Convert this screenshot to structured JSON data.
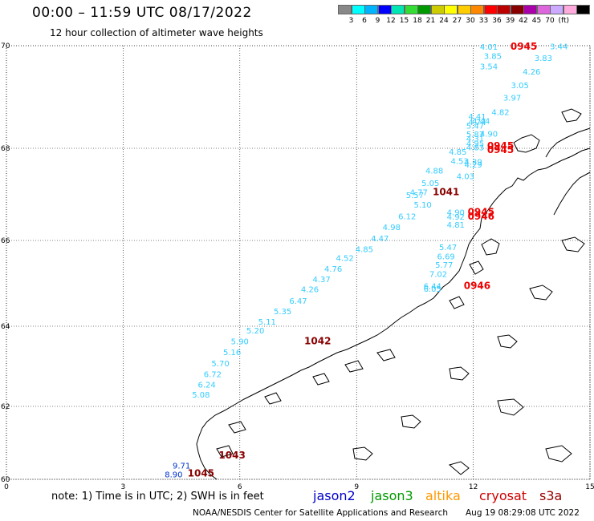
{
  "header": {
    "title": "00:00 – 11:59 UTC 08/17/2022",
    "subtitle": "12 hour collection of altimeter wave heights"
  },
  "colorbar": {
    "colors": [
      "#888888",
      "#00ffff",
      "#00b3ff",
      "#0000ff",
      "#00e6b3",
      "#33dd33",
      "#009900",
      "#cccc00",
      "#ffff00",
      "#ffcc00",
      "#ff8800",
      "#ff0000",
      "#bb0000",
      "#880000",
      "#aa00aa",
      "#dd66dd",
      "#ccaaff",
      "#ffaadd",
      "#000000"
    ],
    "labels": [
      "3",
      "6",
      "9",
      "12",
      "15",
      "18",
      "21",
      "24",
      "27",
      "30",
      "33",
      "36",
      "39",
      "42",
      "45",
      "70"
    ],
    "unit": "(ft)"
  },
  "axes": {
    "lat_labels": [
      {
        "lat": 70,
        "label": "70"
      },
      {
        "lat": 68,
        "label": "68"
      },
      {
        "lat": 66,
        "label": "66"
      },
      {
        "lat": 64,
        "label": "64"
      },
      {
        "lat": 62,
        "label": "62"
      },
      {
        "lat": 60,
        "label": "60"
      }
    ],
    "lon_labels": [
      {
        "lon": 0,
        "label": "0"
      },
      {
        "lon": 3,
        "label": "3"
      },
      {
        "lon": 6,
        "label": "6"
      },
      {
        "lon": 9,
        "label": "9"
      },
      {
        "lon": 12,
        "label": "12"
      },
      {
        "lon": 15,
        "label": "15"
      }
    ],
    "grid": true
  },
  "tracks": {
    "cyan": [
      {
        "lon": 12.4,
        "lat": 69.92,
        "v": "4.01"
      },
      {
        "lon": 14.2,
        "lat": 69.93,
        "v": "3.44"
      },
      {
        "lon": 12.5,
        "lat": 69.74,
        "v": "3.85"
      },
      {
        "lon": 13.8,
        "lat": 69.7,
        "v": "3.83"
      },
      {
        "lon": 12.4,
        "lat": 69.54,
        "v": "3.54"
      },
      {
        "lon": 13.5,
        "lat": 69.44,
        "v": "4.26"
      },
      {
        "lon": 13.2,
        "lat": 69.17,
        "v": "3.05"
      },
      {
        "lon": 13.0,
        "lat": 68.93,
        "v": "3.97"
      },
      {
        "lon": 12.7,
        "lat": 68.65,
        "v": "4.82"
      },
      {
        "lon": 12.1,
        "lat": 68.56,
        "v": "4.41"
      },
      {
        "lon": 12.2,
        "lat": 68.48,
        "v": "4.44"
      },
      {
        "lon": 12.1,
        "lat": 68.45,
        "v": "4.74"
      },
      {
        "lon": 12.05,
        "lat": 68.38,
        "v": "5.47"
      },
      {
        "lon": 12.4,
        "lat": 68.23,
        "v": "4.90"
      },
      {
        "lon": 12.05,
        "lat": 68.22,
        "v": "5.87"
      },
      {
        "lon": 12.05,
        "lat": 68.13,
        "v": "4.31"
      },
      {
        "lon": 12.05,
        "lat": 68.04,
        "v": "4.95"
      },
      {
        "lon": 12.05,
        "lat": 67.96,
        "v": "4.83"
      },
      {
        "lon": 11.6,
        "lat": 67.86,
        "v": "4.85"
      },
      {
        "lon": 11.65,
        "lat": 67.66,
        "v": "4.53"
      },
      {
        "lon": 12.0,
        "lat": 67.64,
        "v": "4.39"
      },
      {
        "lon": 12.0,
        "lat": 67.58,
        "v": "4.29"
      },
      {
        "lon": 11.0,
        "lat": 67.45,
        "v": "4.88"
      },
      {
        "lon": 11.8,
        "lat": 67.33,
        "v": "4.03"
      },
      {
        "lon": 10.9,
        "lat": 67.18,
        "v": "5.05"
      },
      {
        "lon": 10.6,
        "lat": 66.98,
        "v": "4.77"
      },
      {
        "lon": 10.5,
        "lat": 66.92,
        "v": "5.57"
      },
      {
        "lon": 10.7,
        "lat": 66.71,
        "v": "5.10"
      },
      {
        "lon": 11.55,
        "lat": 66.55,
        "v": "4.90"
      },
      {
        "lon": 11.55,
        "lat": 66.45,
        "v": "4.92"
      },
      {
        "lon": 10.3,
        "lat": 66.46,
        "v": "6.12"
      },
      {
        "lon": 11.55,
        "lat": 66.28,
        "v": "4.81"
      },
      {
        "lon": 9.9,
        "lat": 66.23,
        "v": "4.98"
      },
      {
        "lon": 9.6,
        "lat": 65.98,
        "v": "4.47"
      },
      {
        "lon": 11.35,
        "lat": 65.78,
        "v": "5.47"
      },
      {
        "lon": 9.2,
        "lat": 65.73,
        "v": "4.85"
      },
      {
        "lon": 11.3,
        "lat": 65.56,
        "v": "6.69"
      },
      {
        "lon": 8.7,
        "lat": 65.52,
        "v": "4.52"
      },
      {
        "lon": 11.25,
        "lat": 65.36,
        "v": "5.77"
      },
      {
        "lon": 8.4,
        "lat": 65.27,
        "v": "4.76"
      },
      {
        "lon": 11.1,
        "lat": 65.15,
        "v": "7.02"
      },
      {
        "lon": 8.1,
        "lat": 65.03,
        "v": "4.37"
      },
      {
        "lon": 10.95,
        "lat": 64.87,
        "v": "6.44"
      },
      {
        "lon": 10.95,
        "lat": 64.8,
        "v": "6.05"
      },
      {
        "lon": 7.8,
        "lat": 64.79,
        "v": "4.26"
      },
      {
        "lon": 7.5,
        "lat": 64.52,
        "v": "6.47"
      },
      {
        "lon": 7.1,
        "lat": 64.28,
        "v": "5.35"
      },
      {
        "lon": 6.7,
        "lat": 64.04,
        "v": "5.11"
      },
      {
        "lon": 6.4,
        "lat": 63.82,
        "v": "5.20"
      },
      {
        "lon": 6.0,
        "lat": 63.55,
        "v": "5.90"
      },
      {
        "lon": 5.8,
        "lat": 63.28,
        "v": "5.16"
      },
      {
        "lon": 5.5,
        "lat": 63.0,
        "v": "5.70"
      },
      {
        "lon": 5.3,
        "lat": 62.73,
        "v": "6.72"
      },
      {
        "lon": 5.15,
        "lat": 62.47,
        "v": "6.24"
      },
      {
        "lon": 5.0,
        "lat": 62.22,
        "v": "5.08"
      }
    ],
    "blue": [
      {
        "lon": 4.5,
        "lat": 60.3,
        "v": "9.71"
      },
      {
        "lon": 4.3,
        "lat": 60.06,
        "v": "8.90"
      }
    ],
    "darkred": [
      {
        "lon": 11.3,
        "lat": 66.98,
        "v": "1041"
      },
      {
        "lon": 8.0,
        "lat": 63.55,
        "v": "1042"
      },
      {
        "lon": 5.8,
        "lat": 60.57,
        "v": "1043"
      },
      {
        "lon": 5.0,
        "lat": 60.08,
        "v": "1045"
      }
    ],
    "red": [
      {
        "lon": 13.3,
        "lat": 69.92,
        "v": "0945"
      },
      {
        "lon": 12.7,
        "lat": 67.98,
        "v": "0945"
      },
      {
        "lon": 12.7,
        "lat": 67.9,
        "v": "0945"
      },
      {
        "lon": 12.2,
        "lat": 66.55,
        "v": "0945"
      },
      {
        "lon": 12.2,
        "lat": 66.45,
        "v": "0946"
      },
      {
        "lon": 12.1,
        "lat": 64.87,
        "v": "0946"
      }
    ]
  },
  "note": "note:  1) Time is in UTC;  2) SWH is in feet",
  "legend": [
    {
      "label": "jason2",
      "color": "#0000cc"
    },
    {
      "label": "jason3",
      "color": "#009900"
    },
    {
      "label": "altika",
      "color": "#ff9900"
    },
    {
      "label": "cryosat",
      "color": "#cc0000"
    },
    {
      "label": "s3a",
      "color": "#990000"
    }
  ],
  "credit": "NOAA/NESDIS Center for Satellite Applications and Research",
  "updated": "Aug 19 08:29:08 UTC 2022"
}
